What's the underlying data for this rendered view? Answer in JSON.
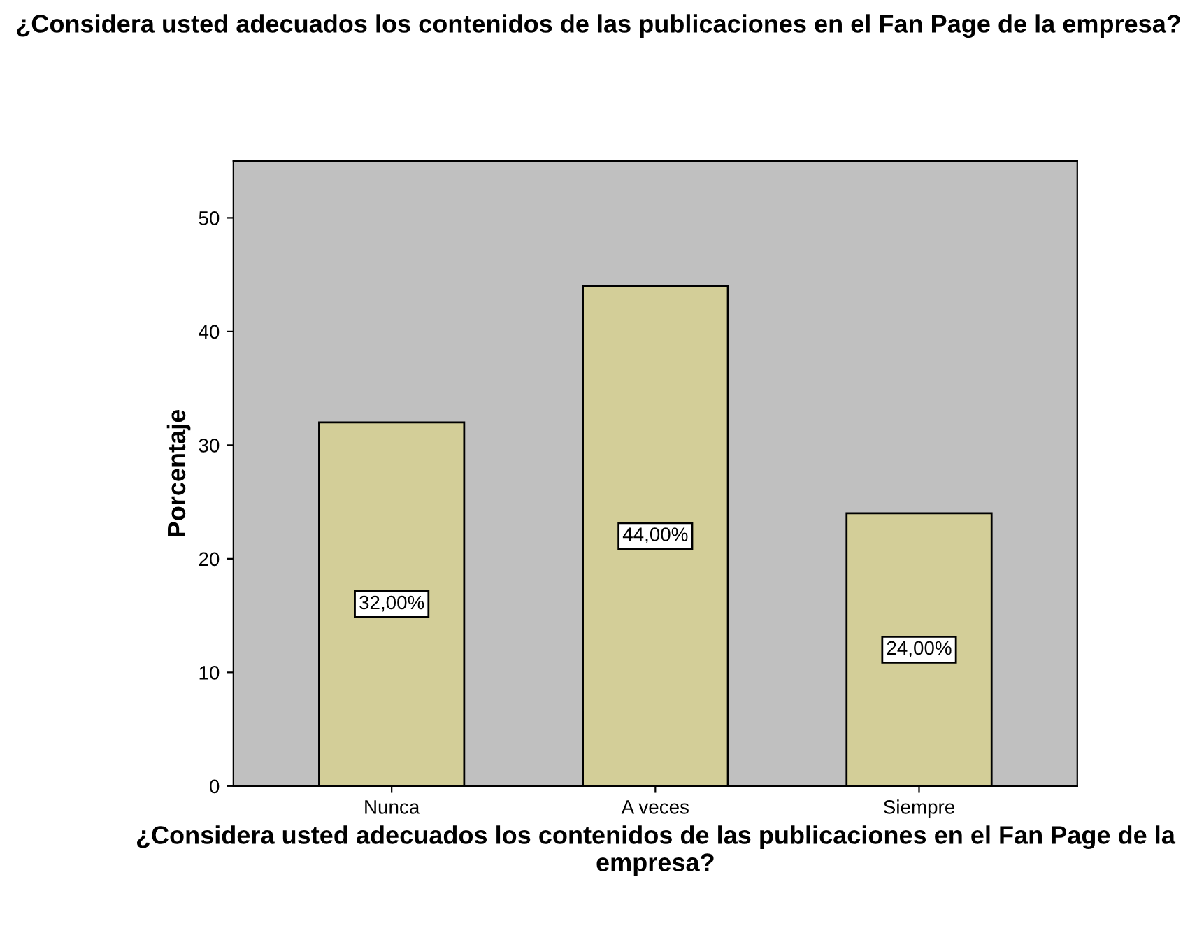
{
  "chart_data": {
    "type": "bar",
    "title": "¿Considera usted adecuados los contenidos de las publicaciones en el Fan Page de la empresa?",
    "xlabel": "¿Considera usted adecuados los contenidos de las publicaciones en el Fan Page de la empresa?",
    "ylabel": "Porcentaje",
    "categories": [
      "Nunca",
      "A veces",
      "Siempre"
    ],
    "values": [
      32,
      44,
      24
    ],
    "value_labels": [
      "32,00%",
      "44,00%",
      "24,00%"
    ],
    "color": "#d3ce98",
    "ylim": [
      0,
      55
    ],
    "yticks": [
      0,
      10,
      20,
      30,
      40,
      50
    ],
    "grid": false,
    "legend": false
  }
}
